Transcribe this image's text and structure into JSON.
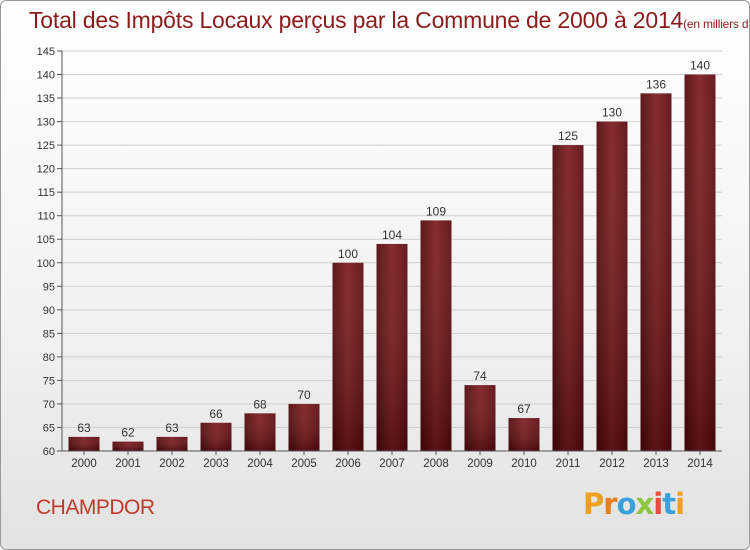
{
  "chart_data": {
    "type": "bar",
    "title": "Total des Impôts Locaux perçus par la Commune de 2000 à 2014",
    "unit_label": "(en milliers d'€)",
    "categories": [
      "2000",
      "2001",
      "2002",
      "2003",
      "2004",
      "2005",
      "2006",
      "2007",
      "2008",
      "2009",
      "2010",
      "2011",
      "2012",
      "2013",
      "2014"
    ],
    "values": [
      63,
      62,
      63,
      66,
      68,
      70,
      100,
      104,
      109,
      74,
      67,
      125,
      130,
      136,
      140
    ],
    "ylim": [
      60,
      145
    ],
    "yticks": [
      60,
      65,
      70,
      75,
      80,
      85,
      90,
      95,
      100,
      105,
      110,
      115,
      120,
      125,
      130,
      135,
      140,
      145
    ],
    "xlabel": "",
    "ylabel": "",
    "grid": true,
    "bar_color": "#6e0f12"
  },
  "commune_name": "CHAMPDOR",
  "logo": {
    "text": [
      "P",
      "r",
      "o",
      "x",
      "i",
      "t",
      "i"
    ],
    "colors": [
      "#f0a020",
      "#e67e22",
      "#3aa0dc",
      "#8dc63f",
      "#e74c3c",
      "#3aa0dc",
      "#f0a020"
    ]
  }
}
